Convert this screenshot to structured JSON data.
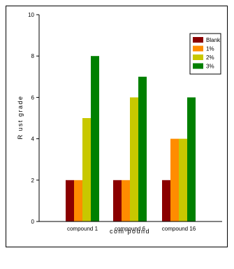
{
  "chart_data": {
    "type": "bar",
    "title": "",
    "xlabel": "com pound",
    "ylabel": "R ust grade",
    "ylim": [
      0,
      10
    ],
    "yticks": [
      0,
      2,
      4,
      6,
      8,
      10
    ],
    "categories": [
      "compound 1",
      "compound 6",
      "compound 16"
    ],
    "series": [
      {
        "name": "Blank",
        "color": "#8b0000",
        "values": [
          2,
          2,
          2
        ]
      },
      {
        "name": "1%",
        "color": "#ff8c00",
        "values": [
          2,
          2,
          4
        ]
      },
      {
        "name": "2%",
        "color": "#c8c800",
        "values": [
          5,
          6,
          4
        ]
      },
      {
        "name": "3%",
        "color": "#008000",
        "values": [
          8,
          7,
          6
        ]
      }
    ],
    "legend_position": "top-right",
    "grid": false
  }
}
